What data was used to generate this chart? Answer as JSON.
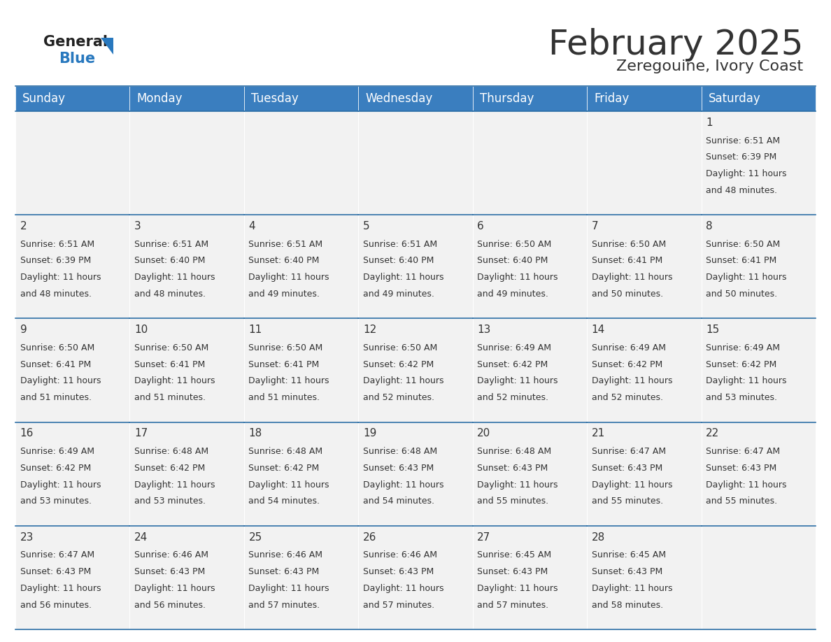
{
  "title": "February 2025",
  "subtitle": "Zeregouine, Ivory Coast",
  "header_bg": "#3a7ebf",
  "header_text_color": "#ffffff",
  "cell_bg": "#f2f2f2",
  "border_color": "#2c6ea5",
  "text_color": "#333333",
  "logo_general_color": "#222222",
  "logo_blue_color": "#2878be",
  "logo_triangle_color": "#2878be",
  "days_of_week": [
    "Sunday",
    "Monday",
    "Tuesday",
    "Wednesday",
    "Thursday",
    "Friday",
    "Saturday"
  ],
  "calendar_data": [
    [
      null,
      null,
      null,
      null,
      null,
      null,
      {
        "day": 1,
        "sunrise": "6:51 AM",
        "sunset": "6:39 PM",
        "daylight": "11 hours",
        "daylight2": "and 48 minutes."
      }
    ],
    [
      {
        "day": 2,
        "sunrise": "6:51 AM",
        "sunset": "6:39 PM",
        "daylight": "11 hours",
        "daylight2": "and 48 minutes."
      },
      {
        "day": 3,
        "sunrise": "6:51 AM",
        "sunset": "6:40 PM",
        "daylight": "11 hours",
        "daylight2": "and 48 minutes."
      },
      {
        "day": 4,
        "sunrise": "6:51 AM",
        "sunset": "6:40 PM",
        "daylight": "11 hours",
        "daylight2": "and 49 minutes."
      },
      {
        "day": 5,
        "sunrise": "6:51 AM",
        "sunset": "6:40 PM",
        "daylight": "11 hours",
        "daylight2": "and 49 minutes."
      },
      {
        "day": 6,
        "sunrise": "6:50 AM",
        "sunset": "6:40 PM",
        "daylight": "11 hours",
        "daylight2": "and 49 minutes."
      },
      {
        "day": 7,
        "sunrise": "6:50 AM",
        "sunset": "6:41 PM",
        "daylight": "11 hours",
        "daylight2": "and 50 minutes."
      },
      {
        "day": 8,
        "sunrise": "6:50 AM",
        "sunset": "6:41 PM",
        "daylight": "11 hours",
        "daylight2": "and 50 minutes."
      }
    ],
    [
      {
        "day": 9,
        "sunrise": "6:50 AM",
        "sunset": "6:41 PM",
        "daylight": "11 hours",
        "daylight2": "and 51 minutes."
      },
      {
        "day": 10,
        "sunrise": "6:50 AM",
        "sunset": "6:41 PM",
        "daylight": "11 hours",
        "daylight2": "and 51 minutes."
      },
      {
        "day": 11,
        "sunrise": "6:50 AM",
        "sunset": "6:41 PM",
        "daylight": "11 hours",
        "daylight2": "and 51 minutes."
      },
      {
        "day": 12,
        "sunrise": "6:50 AM",
        "sunset": "6:42 PM",
        "daylight": "11 hours",
        "daylight2": "and 52 minutes."
      },
      {
        "day": 13,
        "sunrise": "6:49 AM",
        "sunset": "6:42 PM",
        "daylight": "11 hours",
        "daylight2": "and 52 minutes."
      },
      {
        "day": 14,
        "sunrise": "6:49 AM",
        "sunset": "6:42 PM",
        "daylight": "11 hours",
        "daylight2": "and 52 minutes."
      },
      {
        "day": 15,
        "sunrise": "6:49 AM",
        "sunset": "6:42 PM",
        "daylight": "11 hours",
        "daylight2": "and 53 minutes."
      }
    ],
    [
      {
        "day": 16,
        "sunrise": "6:49 AM",
        "sunset": "6:42 PM",
        "daylight": "11 hours",
        "daylight2": "and 53 minutes."
      },
      {
        "day": 17,
        "sunrise": "6:48 AM",
        "sunset": "6:42 PM",
        "daylight": "11 hours",
        "daylight2": "and 53 minutes."
      },
      {
        "day": 18,
        "sunrise": "6:48 AM",
        "sunset": "6:42 PM",
        "daylight": "11 hours",
        "daylight2": "and 54 minutes."
      },
      {
        "day": 19,
        "sunrise": "6:48 AM",
        "sunset": "6:43 PM",
        "daylight": "11 hours",
        "daylight2": "and 54 minutes."
      },
      {
        "day": 20,
        "sunrise": "6:48 AM",
        "sunset": "6:43 PM",
        "daylight": "11 hours",
        "daylight2": "and 55 minutes."
      },
      {
        "day": 21,
        "sunrise": "6:47 AM",
        "sunset": "6:43 PM",
        "daylight": "11 hours",
        "daylight2": "and 55 minutes."
      },
      {
        "day": 22,
        "sunrise": "6:47 AM",
        "sunset": "6:43 PM",
        "daylight": "11 hours",
        "daylight2": "and 55 minutes."
      }
    ],
    [
      {
        "day": 23,
        "sunrise": "6:47 AM",
        "sunset": "6:43 PM",
        "daylight": "11 hours",
        "daylight2": "and 56 minutes."
      },
      {
        "day": 24,
        "sunrise": "6:46 AM",
        "sunset": "6:43 PM",
        "daylight": "11 hours",
        "daylight2": "and 56 minutes."
      },
      {
        "day": 25,
        "sunrise": "6:46 AM",
        "sunset": "6:43 PM",
        "daylight": "11 hours",
        "daylight2": "and 57 minutes."
      },
      {
        "day": 26,
        "sunrise": "6:46 AM",
        "sunset": "6:43 PM",
        "daylight": "11 hours",
        "daylight2": "and 57 minutes."
      },
      {
        "day": 27,
        "sunrise": "6:45 AM",
        "sunset": "6:43 PM",
        "daylight": "11 hours",
        "daylight2": "and 57 minutes."
      },
      {
        "day": 28,
        "sunrise": "6:45 AM",
        "sunset": "6:43 PM",
        "daylight": "11 hours",
        "daylight2": "and 58 minutes."
      },
      null
    ]
  ],
  "title_fontsize": 36,
  "subtitle_fontsize": 16,
  "header_fontsize": 12,
  "day_num_fontsize": 11,
  "cell_text_fontsize": 9
}
